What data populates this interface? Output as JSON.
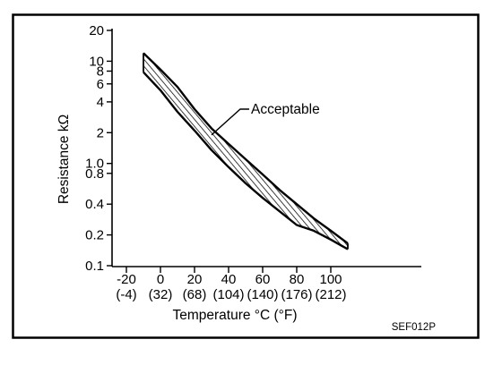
{
  "chart_data": {
    "type": "area",
    "title": "",
    "xlabel": "Temperature °C (°F)",
    "ylabel": "Resistance kΩ",
    "xlim": [
      -25,
      140
    ],
    "ylim": [
      0.1,
      20
    ],
    "yscale": "log",
    "grid": false,
    "x_ticks": [
      -20,
      0,
      20,
      40,
      60,
      80,
      100
    ],
    "x_tick_labels": [
      "-20",
      "0",
      "20",
      "40",
      "60",
      "80",
      "100"
    ],
    "x_tick_labels_f": [
      "(-4)",
      "(32)",
      "(68)",
      "(104)",
      "(140)",
      "(176)",
      "(212)"
    ],
    "y_ticks": [
      20,
      10,
      8,
      6,
      4,
      2,
      1.0,
      0.8,
      0.4,
      0.2,
      0.1
    ],
    "y_tick_labels": [
      "20",
      "10",
      "8",
      "6",
      "4",
      "2",
      "1.0",
      "0.8",
      "0.4",
      "0.2",
      "0.1"
    ],
    "series": [
      {
        "name": "Acceptable",
        "x": [
          -10,
          0,
          10,
          20,
          30,
          40,
          50,
          60,
          70,
          80,
          90,
          100,
          110
        ],
        "upper": [
          12,
          8.3,
          5.6,
          3.4,
          2.2,
          1.55,
          1.1,
          0.78,
          0.55,
          0.4,
          0.29,
          0.22,
          0.165
        ],
        "lower": [
          7.8,
          5.2,
          3.2,
          2.1,
          1.35,
          0.92,
          0.64,
          0.46,
          0.34,
          0.25,
          0.22,
          0.18,
          0.145
        ]
      }
    ],
    "annotations": [
      {
        "text": "Acceptable",
        "target_x": 30,
        "target_y": 1.9
      }
    ],
    "figure_code": "SEF012P"
  }
}
